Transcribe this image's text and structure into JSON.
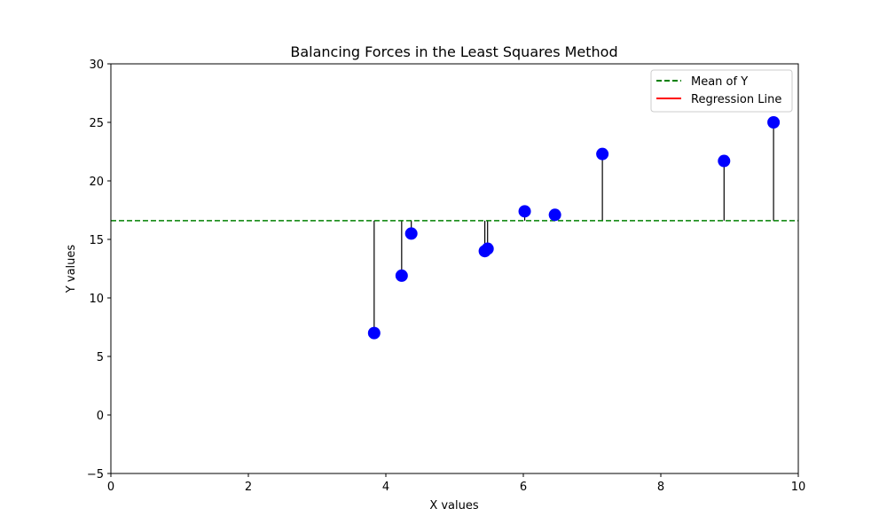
{
  "chart_data": {
    "type": "scatter",
    "title": "Balancing Forces in the Least Squares Method",
    "xlabel": "X values",
    "ylabel": "Y values",
    "xlim": [
      0,
      10
    ],
    "ylim": [
      -5,
      30
    ],
    "xticks": [
      "0",
      "2",
      "4",
      "6",
      "8",
      "10"
    ],
    "yticks": [
      "−5",
      "0",
      "5",
      "10",
      "15",
      "20",
      "25",
      "30"
    ],
    "grid": false,
    "legend": {
      "placement": "top-right",
      "entries": [
        {
          "label": "Mean of Y",
          "style": "dashed",
          "color": "#008000"
        },
        {
          "label": "Regression Line",
          "style": "solid",
          "color": "#ff0000"
        }
      ]
    },
    "mean_y": 16.6,
    "points": [
      {
        "x": 3.83,
        "y": 7.0
      },
      {
        "x": 4.23,
        "y": 11.9
      },
      {
        "x": 4.37,
        "y": 15.5
      },
      {
        "x": 5.44,
        "y": 14.0
      },
      {
        "x": 5.48,
        "y": 14.2
      },
      {
        "x": 6.02,
        "y": 17.4
      },
      {
        "x": 6.46,
        "y": 17.1
      },
      {
        "x": 7.15,
        "y": 22.3
      },
      {
        "x": 8.92,
        "y": 21.7
      },
      {
        "x": 9.64,
        "y": 25.0
      }
    ],
    "colors": {
      "points": "#0000ff",
      "mean_line": "#008000",
      "regression_line": "#ff0000",
      "residual_lines": "#000000"
    }
  }
}
